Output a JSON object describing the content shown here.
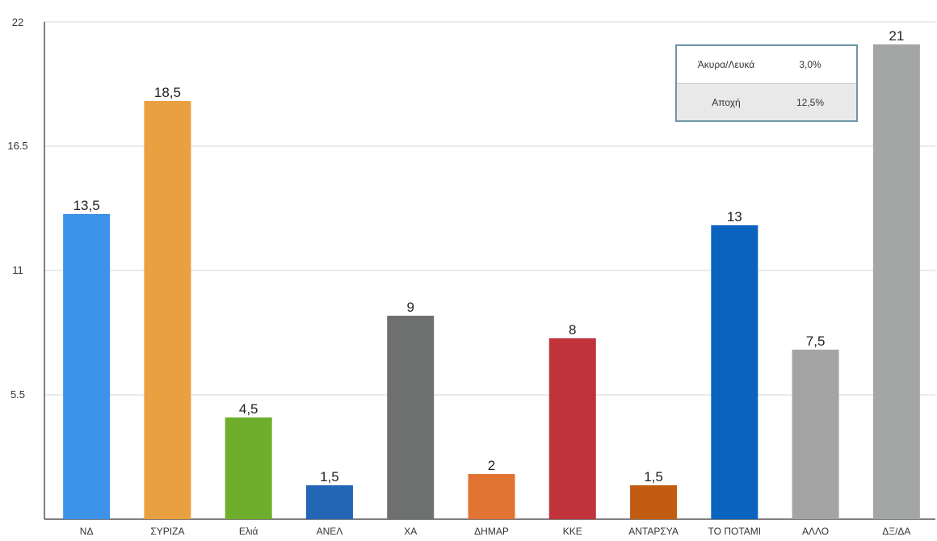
{
  "chart_data": {
    "type": "bar",
    "categories": [
      "ΝΔ",
      "ΣΥΡΙΖΑ",
      "Ελιά",
      "ΑΝΕΛ",
      "ΧΑ",
      "ΔΗΜΑΡ",
      "ΚΚΕ",
      "ΑΝΤΑΡΣΥΑ",
      "ΤΟ ΠΟΤΑΜΙ",
      "ΑΛΛΟ",
      "ΔΞ/ΔΑ"
    ],
    "values": [
      13.5,
      18.5,
      4.5,
      1.5,
      9,
      2,
      8,
      1.5,
      13,
      7.5,
      21
    ],
    "value_labels": [
      "13,5",
      "18,5",
      "4,5",
      "1,5",
      "9",
      "2",
      "8",
      "1,5",
      "13",
      "7,5",
      "21"
    ],
    "colors": [
      "#3d93e8",
      "#e9a040",
      "#6fad2d",
      "#2466b6",
      "#6d706f",
      "#e27433",
      "#c0333b",
      "#c25c13",
      "#0a63bf",
      "#a4a4a4",
      "#a4a6a5"
    ],
    "title": "",
    "xlabel": "",
    "ylabel": "",
    "ylim": [
      0,
      22
    ],
    "yticks": [
      5.5,
      11,
      16.5,
      22
    ],
    "ytick_labels": [
      "5.5",
      "11",
      "16.5",
      "22"
    ],
    "grid": true,
    "legend": "none"
  },
  "info_box": {
    "rows": [
      {
        "label": "Άκυρα/Λευκά",
        "value": "3,0%"
      },
      {
        "label": "Αποχή",
        "value": "12,5%"
      }
    ]
  }
}
